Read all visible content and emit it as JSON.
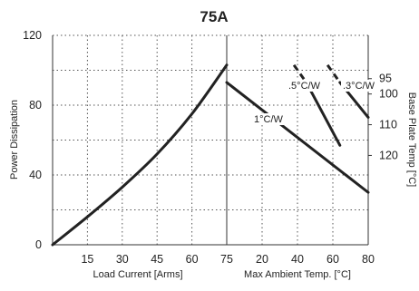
{
  "chart_data": {
    "type": "line",
    "title": "75A",
    "grid": true,
    "y_left": {
      "label": "Power Dissipation",
      "range": [
        0,
        120
      ],
      "ticks": [
        0,
        40,
        80,
        120
      ],
      "tick_labels": [
        "0",
        "40",
        "80",
        "120"
      ],
      "minor_gridlines": [
        20,
        60,
        100
      ]
    },
    "y_right": {
      "label": "Base Plate Temp [°C]",
      "tick_labels": [
        "95",
        "100",
        "110",
        "120"
      ],
      "tick_values_at_left_axis": [
        95.2,
        86.4,
        68.8,
        51.2
      ]
    },
    "x_left_panel": {
      "label": "Load Current  [Arms]",
      "range": [
        0,
        75
      ],
      "ticks": [
        15,
        30,
        45,
        60,
        75
      ],
      "tick_labels": [
        "15",
        "30",
        "45",
        "60",
        "75"
      ]
    },
    "x_right_panel": {
      "label": "Max Ambient Temp. [°C]",
      "range": [
        0,
        80
      ],
      "ticks": [
        20,
        40,
        60,
        80
      ],
      "tick_labels": [
        "20",
        "40",
        "60",
        "80"
      ]
    },
    "series": [
      {
        "panel": "left",
        "points": [
          [
            0,
            0
          ],
          [
            15,
            16
          ],
          [
            30,
            33
          ],
          [
            45,
            52
          ],
          [
            60,
            75
          ],
          [
            75,
            103
          ]
        ]
      },
      {
        "panel": "right",
        "name": "1°C/W",
        "points": [
          [
            0,
            93
          ],
          [
            80,
            30
          ]
        ]
      },
      {
        "panel": "right",
        "name": ".5°C/W",
        "points": [
          [
            38,
            103
          ],
          [
            64,
            57
          ]
        ],
        "dashed_segment": [
          [
            38,
            103
          ],
          [
            45,
            93
          ]
        ]
      },
      {
        "panel": "right",
        "name": ".3°C/W",
        "points": [
          [
            57,
            103
          ],
          [
            80,
            73
          ]
        ],
        "dashed_segment": [
          [
            57,
            103
          ],
          [
            64,
            93
          ]
        ]
      }
    ]
  }
}
